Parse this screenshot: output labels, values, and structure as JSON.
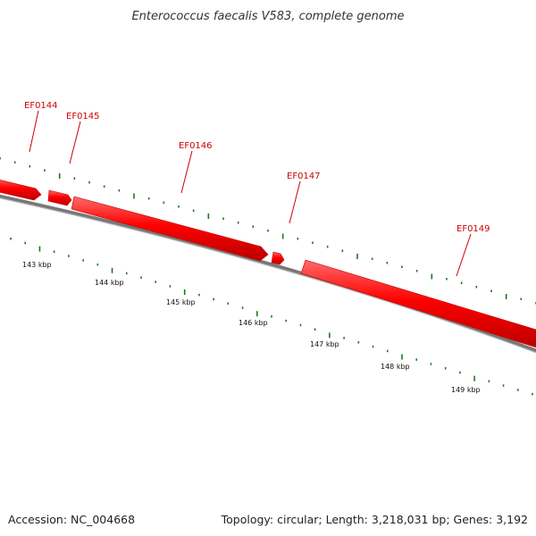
{
  "title": "Enterococcus faecalis V583, complete genome",
  "footer": {
    "accession": "Accession: NC_004668",
    "summary": "Topology: circular; Length: 3,218,031 bp; Genes: 3,192"
  },
  "genes": [
    {
      "name": "EF0144",
      "strand": "+"
    },
    {
      "name": "EF0145",
      "strand": "+"
    },
    {
      "name": "EF0146",
      "strand": "+"
    },
    {
      "name": "EF0147",
      "strand": "+"
    },
    {
      "name": "EF0149",
      "strand": "+"
    }
  ],
  "scale": {
    "unit": "kbp",
    "ticks": [
      "143 kbp",
      "144 kbp",
      "145 kbp",
      "146 kbp",
      "147 kbp",
      "148 kbp",
      "149 kbp"
    ]
  },
  "colors": {
    "gene": "#ff0000",
    "gene_label": "#cc0000",
    "backbone": "#777777",
    "ticks": "#1a7a1a"
  }
}
